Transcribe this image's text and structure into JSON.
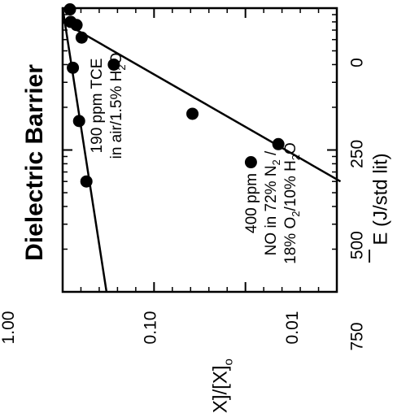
{
  "chart_data": {
    "type": "scatter",
    "title": "Dielectric Barrier",
    "xlabel": "[X]/[X]",
    "xlabel_sub": "o",
    "ylabel": "E (J/std lit)",
    "x_scale": "log",
    "xlim": [
      1.0,
      0.01
    ],
    "ylim": [
      0,
      750
    ],
    "x_ticks": [
      1.0,
      0.1,
      0.01
    ],
    "x_tick_labels": [
      "1.00",
      "0.10",
      "0.01"
    ],
    "y_ticks": [
      0,
      250,
      500,
      750
    ],
    "y_tick_labels": [
      "0",
      "250",
      "500",
      "750"
    ],
    "series": [
      {
        "points": [
          [
            0.98,
            20
          ],
          [
            0.8,
            22
          ],
          [
            0.76,
            38
          ],
          [
            0.62,
            52
          ],
          [
            0.4,
            140
          ],
          [
            0.18,
            355
          ],
          [
            0.11,
            590
          ],
          [
            0.082,
            515
          ]
        ],
        "fit_line": [
          [
            0.8,
            0
          ],
          [
            0.06,
            760
          ]
        ]
      },
      {
        "points": [
          [
            0.38,
            28
          ],
          [
            0.16,
            45
          ],
          [
            0.06,
            65
          ]
        ],
        "fit_line": [
          [
            1.0,
            0
          ],
          [
            0.01,
            120
          ]
        ]
      }
    ],
    "annotations": [
      {
        "parts": [
          {
            "line": [
              "190 ppm TCE"
            ]
          },
          {
            "line": [
              "in air/1.5% H",
              "2",
              "O"
            ]
          }
        ]
      },
      {
        "parts": [
          {
            "line": [
              "400 ppm"
            ]
          },
          {
            "line": [
              "NO in 72% N",
              "2",
              " /"
            ]
          },
          {
            "line": [
              "18% O",
              "2",
              "/10% H",
              "2",
              "O"
            ]
          }
        ]
      }
    ]
  }
}
